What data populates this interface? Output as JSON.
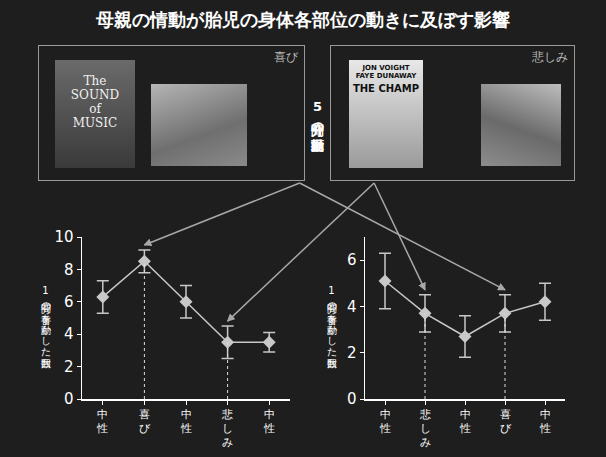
{
  "title": "母親の情動が胎児の身体各部位の動きに及ぼす影響",
  "stimulus": {
    "label": "5分間の動画提示",
    "panels": [
      {
        "label": "喜び",
        "poster_text": [
          "The SOUND of MUSIC"
        ]
      },
      {
        "label": "悲しみ",
        "poster_text": [
          "JON VOIGHT",
          "FAYE DUNAWAY",
          "THE CHAMP"
        ]
      }
    ]
  },
  "chart_data": [
    {
      "type": "line",
      "ylabel": "1分間の手首を動かした回数",
      "categories": [
        "中性",
        "喜び",
        "中性",
        "悲しみ",
        "中性"
      ],
      "values": [
        6.3,
        8.5,
        6.0,
        3.5,
        3.5
      ],
      "errors": [
        1.0,
        0.7,
        1.0,
        1.0,
        0.6
      ],
      "ylim": [
        0,
        10
      ],
      "yticks": [
        0,
        2,
        4,
        6,
        8,
        10
      ],
      "color": "#c8c8c8",
      "marker": "diamond"
    },
    {
      "type": "line",
      "ylabel": "1分間の手首を動かした回数",
      "categories": [
        "中性",
        "悲しみ",
        "中性",
        "喜び",
        "中性"
      ],
      "values": [
        5.1,
        3.7,
        2.7,
        3.7,
        4.2
      ],
      "errors": [
        1.2,
        0.8,
        0.9,
        0.8,
        0.8
      ],
      "ylim": [
        0,
        7
      ],
      "yticks": [
        0,
        2,
        4,
        6
      ],
      "color": "#c8c8c8",
      "marker": "diamond"
    }
  ]
}
